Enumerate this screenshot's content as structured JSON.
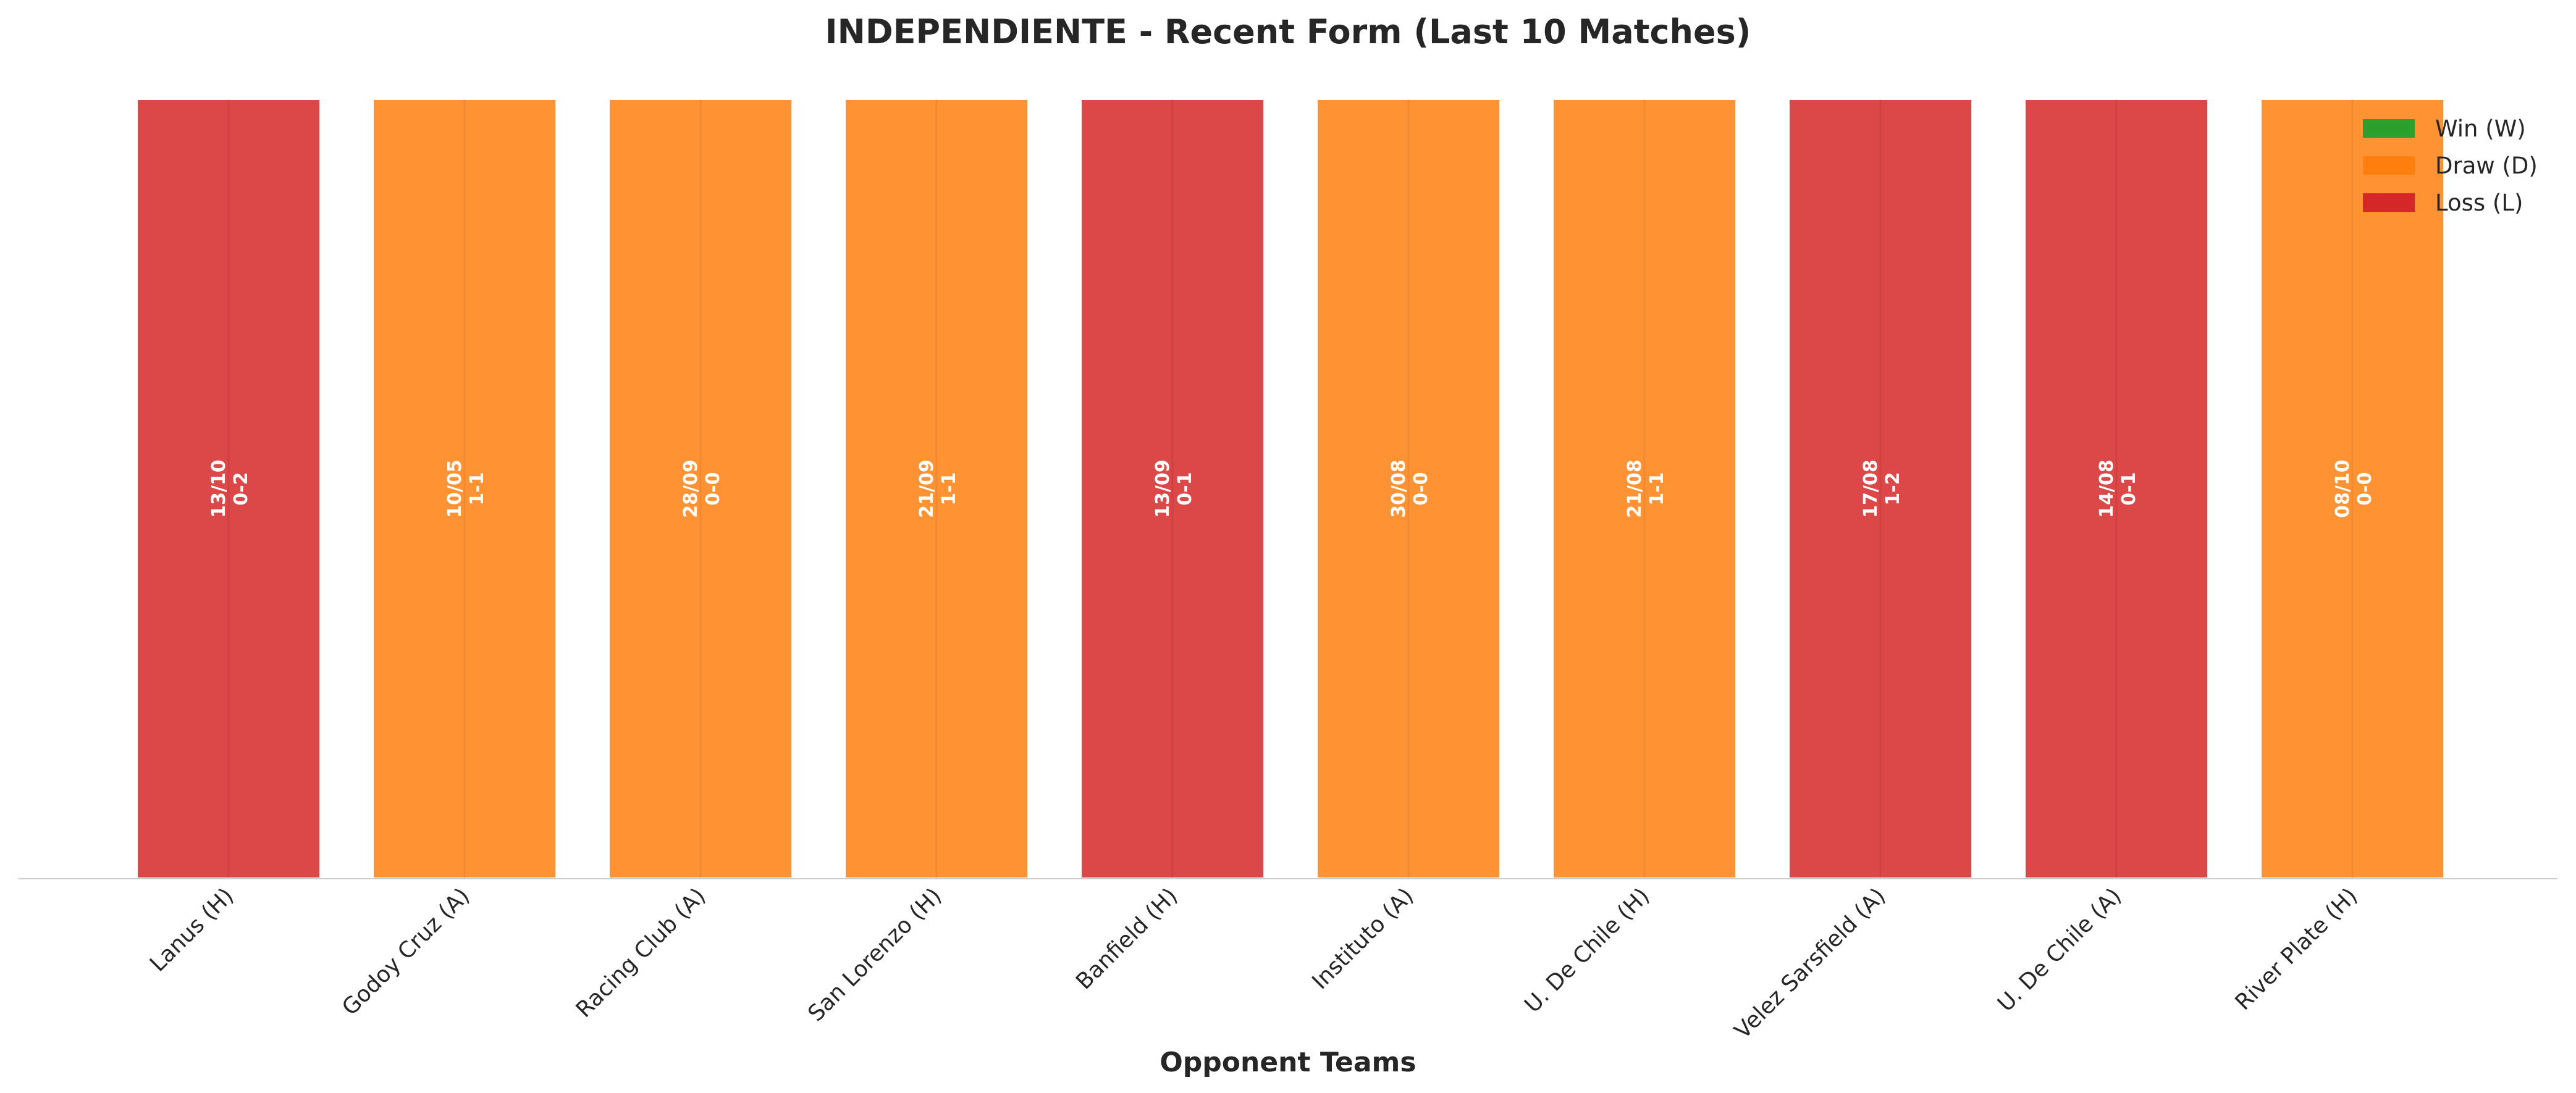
{
  "chart_data": {
    "type": "bar",
    "title": "INDEPENDIENTE - Recent Form (Last 10 Matches)",
    "xlabel": "Opponent Teams",
    "ylabel": "",
    "ylim": [
      0,
      1
    ],
    "grid": false,
    "legend_position": "top-right",
    "categories": [
      "Lanus (H)",
      "Godoy Cruz (A)",
      "Racing Club (A)",
      "San Lorenzo (H)",
      "Banfield (H)",
      "Instituto (A)",
      "U. De Chile (H)",
      "Velez Sarsfield (A)",
      "U. De Chile (A)",
      "River Plate (H)"
    ],
    "values": [
      1,
      1,
      1,
      1,
      1,
      1,
      1,
      1,
      1,
      1
    ],
    "results": [
      "L",
      "D",
      "D",
      "D",
      "L",
      "D",
      "D",
      "L",
      "L",
      "D"
    ],
    "bar_labels": [
      [
        "13/10",
        "0-2"
      ],
      [
        "10/05",
        "1-1"
      ],
      [
        "28/09",
        "0-0"
      ],
      [
        "21/09",
        "1-1"
      ],
      [
        "13/09",
        "0-1"
      ],
      [
        "30/08",
        "0-0"
      ],
      [
        "21/08",
        "1-1"
      ],
      [
        "17/08",
        "1-2"
      ],
      [
        "14/08",
        "0-1"
      ],
      [
        "08/10",
        "0-0"
      ]
    ],
    "legend": [
      {
        "key": "W",
        "label": "Win (W)",
        "color": "#2ca02c"
      },
      {
        "key": "D",
        "label": "Draw (D)",
        "color": "#ff7f0e"
      },
      {
        "key": "L",
        "label": "Loss (L)",
        "color": "#d62728"
      }
    ]
  }
}
